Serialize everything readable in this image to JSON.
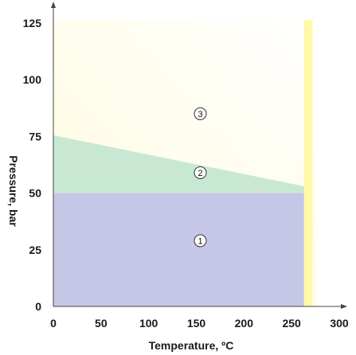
{
  "chart_data": {
    "type": "area",
    "xlabel": "Temperature, ºC",
    "ylabel": "Pressure, bar",
    "xlim": [
      0,
      300
    ],
    "ylim": [
      0,
      125
    ],
    "x_ticks": [
      "0",
      "50",
      "100",
      "150",
      "200",
      "250",
      "300"
    ],
    "y_ticks": [
      "0",
      "25",
      "50",
      "75",
      "100",
      "125"
    ],
    "grid": false,
    "regions": [
      {
        "name": "1",
        "color": "#c6c6e6",
        "points": [
          [
            0,
            0
          ],
          [
            263,
            0
          ],
          [
            263,
            50
          ],
          [
            0,
            50
          ]
        ],
        "label_at": [
          150,
          29
        ]
      },
      {
        "name": "2",
        "color": "#c8e8d4",
        "points": [
          [
            0,
            50
          ],
          [
            263,
            50
          ],
          [
            263,
            53
          ],
          [
            0,
            75.5
          ]
        ],
        "label_at": [
          150,
          59
        ]
      },
      {
        "name": "3",
        "color": "#fdfbe0",
        "points": [
          [
            0,
            75.5
          ],
          [
            263,
            53
          ],
          [
            263,
            0
          ],
          [
            272,
            0
          ],
          [
            272,
            125
          ],
          [
            0,
            125
          ]
        ],
        "label_at": [
          150,
          85
        ]
      }
    ],
    "accent_band": {
      "x_from": 263,
      "x_to": 272,
      "color": "#fff9a8"
    }
  }
}
